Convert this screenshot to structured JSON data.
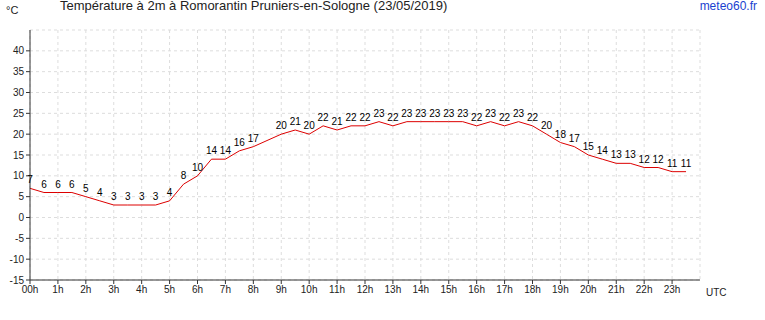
{
  "chart_data": {
    "type": "line",
    "title": "Température à 2m à Romorantin Pruniers-en-Sologne (23/05/2019)",
    "annotation": "meteo60.fr",
    "y_label": "°C",
    "x_label": "UTC",
    "x": [
      0,
      0.5,
      1,
      1.5,
      2,
      2.5,
      3,
      3.5,
      4,
      4.5,
      5,
      5.5,
      6,
      6.5,
      7,
      7.5,
      8,
      9,
      9.5,
      10,
      10.5,
      11,
      11.5,
      12,
      12.5,
      13,
      13.5,
      14,
      14.5,
      15,
      15.5,
      16,
      16.5,
      17,
      17.5,
      18,
      18.5,
      19,
      19.5,
      20,
      20.5,
      21,
      21.5,
      22,
      22.5,
      23,
      23.5
    ],
    "values": [
      7,
      6,
      6,
      6,
      5,
      4,
      3,
      3,
      3,
      3,
      4,
      8,
      10,
      14,
      14,
      16,
      17,
      20,
      21,
      20,
      22,
      21,
      22,
      22,
      23,
      22,
      23,
      23,
      23,
      23,
      23,
      22,
      23,
      22,
      23,
      22,
      20,
      18,
      17,
      15,
      14,
      13,
      13,
      12,
      12,
      11,
      11
    ],
    "color": "#dd0000",
    "xlim": [
      0,
      24
    ],
    "xticks": [
      {
        "value": 0,
        "label": "00h"
      },
      {
        "value": 1,
        "label": "1h"
      },
      {
        "value": 2,
        "label": "2h"
      },
      {
        "value": 3,
        "label": "3h"
      },
      {
        "value": 4,
        "label": "4h"
      },
      {
        "value": 5,
        "label": "5h"
      },
      {
        "value": 6,
        "label": "6h"
      },
      {
        "value": 7,
        "label": "7h"
      },
      {
        "value": 8,
        "label": "8h"
      },
      {
        "value": 9,
        "label": "9h"
      },
      {
        "value": 10,
        "label": "10h"
      },
      {
        "value": 11,
        "label": "11h"
      },
      {
        "value": 12,
        "label": "12h"
      },
      {
        "value": 13,
        "label": "13h"
      },
      {
        "value": 14,
        "label": "14h"
      },
      {
        "value": 15,
        "label": "15h"
      },
      {
        "value": 16,
        "label": "16h"
      },
      {
        "value": 17,
        "label": "17h"
      },
      {
        "value": 18,
        "label": "18h"
      },
      {
        "value": 19,
        "label": "19h"
      },
      {
        "value": 20,
        "label": "20h"
      },
      {
        "value": 21,
        "label": "21h"
      },
      {
        "value": 22,
        "label": "22h"
      },
      {
        "value": 23,
        "label": "23h"
      }
    ],
    "ylim": [
      -15,
      45
    ],
    "yticks": [
      -15,
      -10,
      -5,
      0,
      5,
      10,
      15,
      20,
      25,
      30,
      35,
      40
    ],
    "grid": true,
    "data_labels": true
  }
}
